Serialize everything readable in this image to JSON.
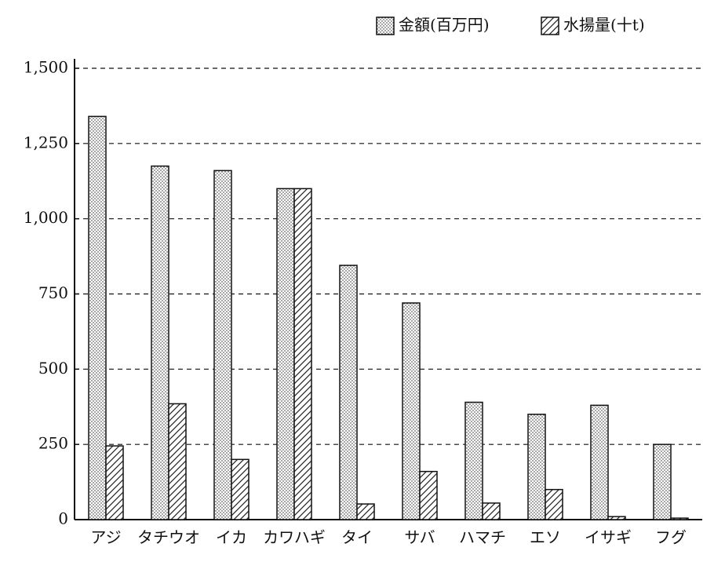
{
  "chart_data": {
    "type": "bar",
    "categories": [
      "アジ",
      "タチウオ",
      "イカ",
      "カワハギ",
      "タイ",
      "サバ",
      "ハマチ",
      "エソ",
      "イサギ",
      "フグ"
    ],
    "series": [
      {
        "name": "金額(百万円)",
        "color": "#222222",
        "pattern": "dots",
        "values": [
          1340,
          1175,
          1160,
          1100,
          845,
          720,
          390,
          350,
          380,
          250
        ]
      },
      {
        "name": "水揚量(十t)",
        "color": "#222222",
        "pattern": "hatch",
        "values": [
          245,
          385,
          200,
          1100,
          52,
          160,
          55,
          100,
          10,
          5
        ]
      }
    ],
    "ylim": [
      0,
      1500
    ],
    "yticks": [
      0,
      250,
      500,
      750,
      {
        "value": 1000,
        "label": "1,000"
      },
      {
        "value": 1250,
        "label": "1,250"
      },
      {
        "value": 1500,
        "label": "1,500"
      }
    ],
    "grid": true
  }
}
